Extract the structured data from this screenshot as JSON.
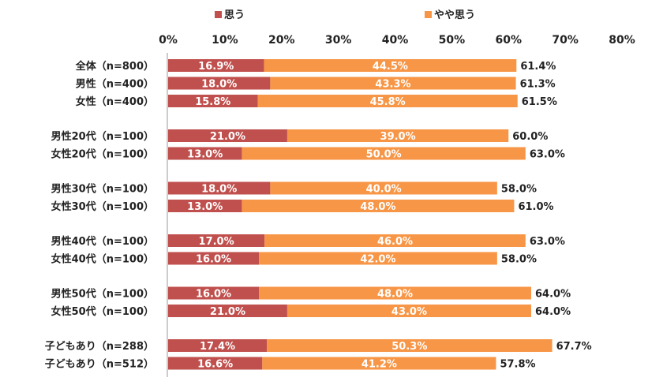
{
  "chart_data": {
    "type": "bar",
    "orientation": "horizontal",
    "stacked": true,
    "xlim": [
      0,
      80
    ],
    "ticks": [
      "0%",
      "10%",
      "20%",
      "30%",
      "40%",
      "50%",
      "60%",
      "70%",
      "80%"
    ],
    "legend": "top",
    "categories": [
      "全体（n=800）",
      "男性（n=400）",
      "女性（n=400）",
      "男性20代（n=100）",
      "女性20代（n=100）",
      "男性30代（n=100）",
      "女性30代（n=100）",
      "男性40代（n=100）",
      "女性40代（n=100）",
      "男性50代（n=100）",
      "女性50代（n=100）",
      "子どもあり（n=288）",
      "子どもあり（n=512）"
    ],
    "groups": [
      3,
      2,
      2,
      2,
      2,
      2
    ],
    "series": [
      {
        "name": "思う",
        "color": "#c0504d",
        "values": [
          16.9,
          18.0,
          15.8,
          21.0,
          13.0,
          18.0,
          13.0,
          17.0,
          16.0,
          16.0,
          21.0,
          17.4,
          16.6
        ],
        "labels": [
          "16.9%",
          "18.0%",
          "15.8%",
          "21.0%",
          "13.0%",
          "18.0%",
          "13.0%",
          "17.0%",
          "16.0%",
          "16.0%",
          "21.0%",
          "17.4%",
          "16.6%"
        ]
      },
      {
        "name": "やや思う",
        "color": "#f79646",
        "values": [
          44.5,
          43.3,
          45.8,
          39.0,
          50.0,
          40.0,
          48.0,
          46.0,
          42.0,
          48.0,
          43.0,
          50.3,
          41.2
        ],
        "labels": [
          "44.5%",
          "43.3%",
          "45.8%",
          "39.0%",
          "50.0%",
          "40.0%",
          "48.0%",
          "46.0%",
          "42.0%",
          "48.0%",
          "43.0%",
          "50.3%",
          "41.2%"
        ]
      }
    ],
    "totals": [
      61.4,
      61.3,
      61.5,
      60.0,
      63.0,
      58.0,
      61.0,
      63.0,
      58.0,
      64.0,
      64.0,
      67.7,
      57.8
    ],
    "total_labels": [
      "61.4%",
      "61.3%",
      "61.5%",
      "60.0%",
      "63.0%",
      "58.0%",
      "61.0%",
      "63.0%",
      "58.0%",
      "64.0%",
      "64.0%",
      "67.7%",
      "57.8%"
    ]
  }
}
